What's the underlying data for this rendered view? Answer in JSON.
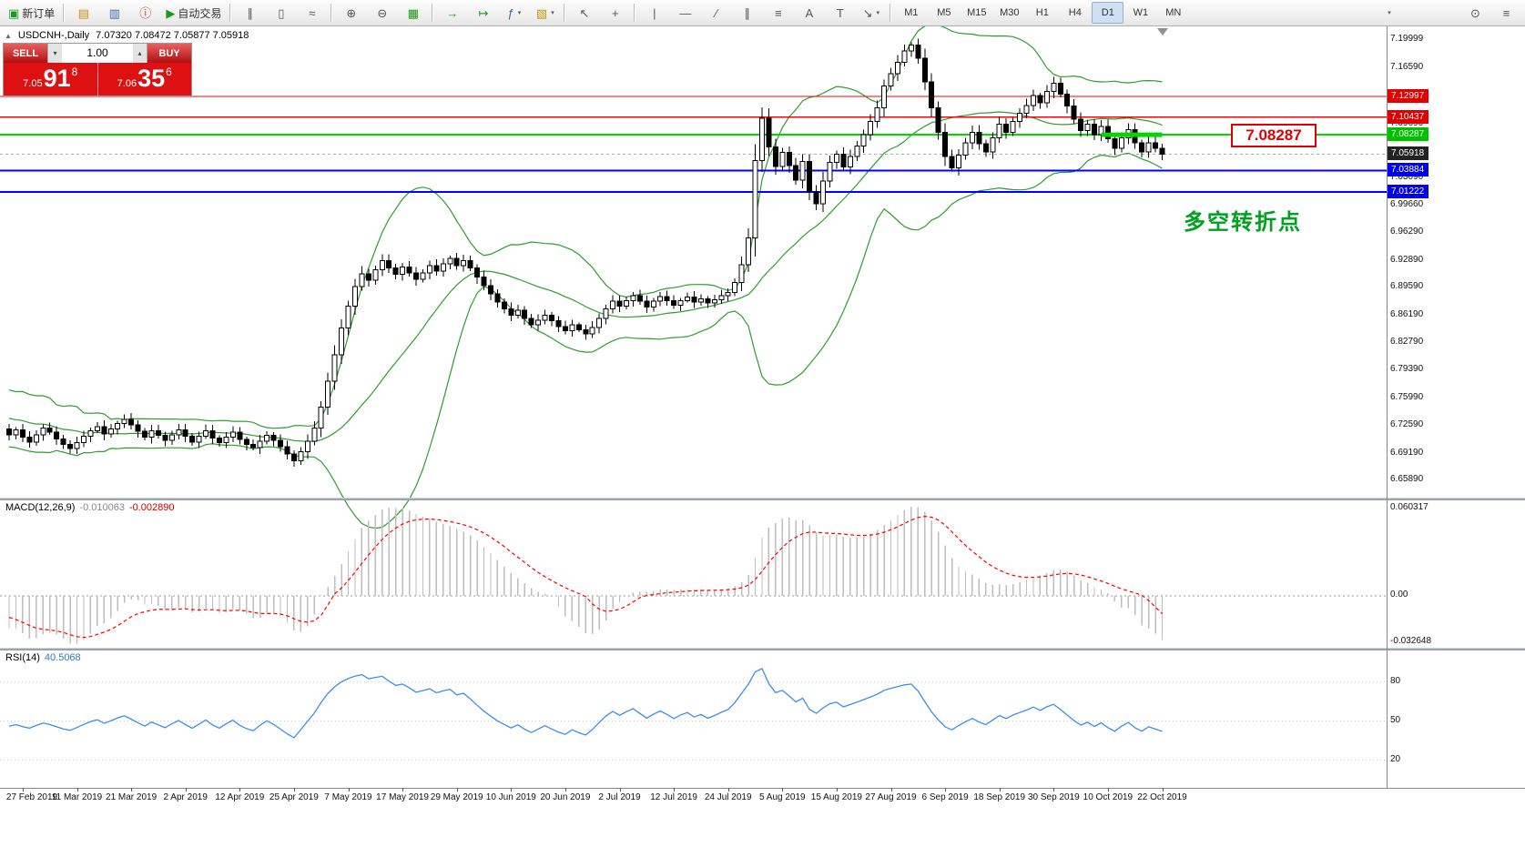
{
  "toolbar": {
    "new_order_label": "新订单",
    "auto_trading_label": "自动交易",
    "timeframes": [
      "M1",
      "M5",
      "M15",
      "M30",
      "H1",
      "H4",
      "D1",
      "W1",
      "MN"
    ],
    "active_timeframe": "D1",
    "icons": {
      "new_order": "▣",
      "charts": "▤",
      "profiles": "▥",
      "info": "ⓘ",
      "play": "▶",
      "bar_chart": "∥",
      "candles": "▯",
      "line_chart": "≈",
      "zoom_in": "⊕",
      "zoom_out": "⊖",
      "grid": "▦",
      "auto_scroll": "→",
      "chart_shift": "↦",
      "indicators": "ƒ",
      "templates": "▧",
      "dropdown": "▾",
      "cursor": "↖",
      "crosshair": "+",
      "vline": "|",
      "hline": "—",
      "trendline": "∕",
      "channel": "∥",
      "fibo": "≡",
      "text": "A",
      "label": "T",
      "arrows": "↘",
      "overflow": "▾",
      "search": "⊙",
      "layout": "≡",
      "collapse": "▲",
      "shift_marker": "▼"
    }
  },
  "chart": {
    "symbol_label": "USDCNH-,Daily",
    "ohlc": "7.07320 7.08472 7.05877 7.05918",
    "one_click": {
      "sell_label": "SELL",
      "buy_label": "BUY",
      "volume": "1.00",
      "down_glyph": "▾",
      "up_glyph": "▴",
      "sell_price_small": "7.05",
      "sell_price_big": "91",
      "sell_price_sup": "8",
      "buy_price_small": "7.06",
      "buy_price_big": "35",
      "buy_price_sup": "6"
    },
    "bid_price": 7.05918,
    "hlines": [
      {
        "price": 7.12997,
        "color": "#ff0000",
        "width": 1.4
      },
      {
        "price": 7.10437,
        "color": "#ff0000",
        "width": 1.4
      },
      {
        "price": 7.08287,
        "color": "#00d800",
        "width": 2
      },
      {
        "price": 7.03884,
        "color": "#0000ff",
        "width": 2
      },
      {
        "price": 7.01222,
        "color": "#0000ff",
        "width": 2
      }
    ],
    "highlight_segment": {
      "price": 7.08287,
      "bar_start": 161,
      "bar_end": 170,
      "color": "#00d800"
    },
    "annotation": {
      "price_text": "7.08287",
      "note_text": "多空转折点"
    },
    "price_axis": {
      "grid": [
        {
          "text": "7.19999",
          "price": 7.19999
        },
        {
          "text": "7.16590",
          "price": 7.1659
        },
        {
          "text": "7.09690",
          "price": 7.0969
        },
        {
          "text": "7.03090",
          "price": 7.0309
        },
        {
          "text": "6.99660",
          "price": 6.9966
        },
        {
          "text": "6.96290",
          "price": 6.9629
        },
        {
          "text": "6.92890",
          "price": 6.9289
        },
        {
          "text": "6.89590",
          "price": 6.8959
        },
        {
          "text": "6.86190",
          "price": 6.8619
        },
        {
          "text": "6.82790",
          "price": 6.8279
        },
        {
          "text": "6.79390",
          "price": 6.7939
        },
        {
          "text": "6.75990",
          "price": 6.7599
        },
        {
          "text": "6.72590",
          "price": 6.7259
        },
        {
          "text": "6.69190",
          "price": 6.6919
        },
        {
          "text": "6.65890",
          "price": 6.6589
        }
      ],
      "tags": [
        {
          "text": "7.12997",
          "price": 7.12997,
          "bg": "#e00000"
        },
        {
          "text": "7.10437",
          "price": 7.10437,
          "bg": "#e00000"
        },
        {
          "text": "7.08287",
          "price": 7.08287,
          "bg": "#00c000"
        },
        {
          "text": "7.05918",
          "price": 7.05918,
          "bg": "#222222"
        },
        {
          "text": "7.03884",
          "price": 7.03884,
          "bg": "#0000ee"
        },
        {
          "text": "7.01222",
          "price": 7.01222,
          "bg": "#0000ee"
        }
      ]
    }
  },
  "macd": {
    "label": "MACD(12,26,9)",
    "value1": "-0.010063",
    "value2": "-0.002890",
    "axis": [
      "0.060317",
      "0.00",
      "-0.032648"
    ],
    "fast": 12,
    "slow": 26,
    "signal_period": 9
  },
  "rsi": {
    "label": "RSI(14)",
    "value": "40.5068",
    "levels": [
      "80",
      "50",
      "20"
    ],
    "period": 14
  },
  "dates": [
    "27 Feb 2019",
    "11 Mar 2019",
    "21 Mar 2019",
    "2 Apr 2019",
    "12 Apr 2019",
    "25 Apr 2019",
    "7 May 2019",
    "17 May 2019",
    "29 May 2019",
    "10 Jun 2019",
    "20 Jun 2019",
    "2 Jul 2019",
    "12 Jul 2019",
    "24 Jul 2019",
    "5 Aug 2019",
    "15 Aug 2019",
    "27 Aug 2019",
    "6 Sep 2019",
    "18 Sep 2019",
    "30 Sep 2019",
    "10 Oct 2019",
    "22 Oct 2019"
  ],
  "colors": {
    "bands": "#2e9e2e",
    "bull": "#ffffff",
    "bear": "#000000",
    "wick": "#000000",
    "macd_hist": "#bebebe",
    "macd_signal": "#ff0000",
    "rsi": "#3b8eea",
    "line_red": "#ff0000",
    "line_green": "#00d800",
    "line_blue": "#0000ff",
    "tag_bid_bg": "#222222",
    "annotation_red": "#e00000",
    "annotation_green": "#00a020"
  },
  "chart_data": {
    "type": "candlestick",
    "symbol": "USDCNH",
    "timeframe": "Daily",
    "ylim": [
      6.65,
      7.215
    ],
    "indicators": [
      "Bollinger Bands(20,2)",
      "MACD(12,26,9)",
      "RSI(14)"
    ],
    "x_axis_labels": [
      "27 Feb 2019",
      "11 Mar 2019",
      "21 Mar 2019",
      "2 Apr 2019",
      "12 Apr 2019",
      "25 Apr 2019",
      "7 May 2019",
      "17 May 2019",
      "29 May 2019",
      "10 Jun 2019",
      "20 Jun 2019",
      "2 Jul 2019",
      "12 Jul 2019",
      "24 Jul 2019",
      "5 Aug 2019",
      "15 Aug 2019",
      "27 Aug 2019",
      "6 Sep 2019",
      "18 Sep 2019",
      "30 Sep 2019",
      "10 Oct 2019",
      "22 Oct 2019"
    ],
    "closes_warmup": [
      6.742,
      6.751,
      6.733,
      6.76,
      6.744,
      6.722,
      6.748,
      6.768,
      6.741,
      6.713,
      6.731,
      6.757,
      6.724,
      6.703,
      6.728,
      6.749,
      6.722,
      6.738,
      6.713,
      6.721
    ],
    "closes": [
      6.714,
      6.72,
      6.711,
      6.705,
      6.714,
      6.722,
      6.717,
      6.709,
      6.702,
      6.697,
      6.704,
      6.712,
      6.719,
      6.724,
      6.715,
      6.721,
      6.728,
      6.733,
      6.726,
      6.718,
      6.711,
      6.719,
      6.713,
      6.707,
      6.714,
      6.72,
      6.712,
      6.705,
      6.712,
      6.719,
      6.71,
      6.704,
      6.711,
      6.717,
      6.708,
      6.702,
      6.698,
      6.706,
      6.713,
      6.707,
      6.699,
      6.69,
      6.682,
      6.693,
      6.706,
      6.722,
      6.748,
      6.78,
      6.812,
      6.845,
      6.872,
      6.896,
      6.912,
      6.904,
      6.917,
      6.928,
      6.919,
      6.911,
      6.92,
      6.913,
      6.905,
      6.913,
      6.922,
      6.915,
      6.924,
      6.931,
      6.922,
      6.928,
      6.919,
      6.908,
      6.897,
      6.887,
      6.877,
      6.869,
      6.861,
      6.867,
      6.857,
      6.849,
      6.855,
      6.861,
      6.854,
      6.847,
      6.842,
      6.849,
      6.843,
      6.838,
      6.846,
      6.857,
      6.869,
      6.878,
      6.872,
      6.879,
      6.885,
      6.878,
      6.871,
      6.878,
      6.884,
      6.879,
      6.873,
      6.879,
      6.883,
      6.877,
      6.881,
      6.876,
      6.88,
      6.885,
      6.889,
      6.901,
      6.923,
      6.956,
      7.051,
      7.103,
      7.068,
      7.044,
      7.061,
      7.045,
      7.027,
      7.05,
      7.013,
      6.998,
      7.026,
      7.049,
      7.059,
      7.043,
      7.056,
      7.069,
      7.083,
      7.099,
      7.116,
      7.143,
      7.158,
      7.172,
      7.186,
      7.193,
      7.177,
      7.148,
      7.116,
      7.086,
      7.056,
      7.042,
      7.058,
      7.073,
      7.086,
      7.072,
      7.062,
      7.079,
      7.096,
      7.086,
      7.099,
      7.109,
      7.119,
      7.131,
      7.122,
      7.136,
      7.146,
      7.133,
      7.118,
      7.102,
      7.088,
      7.096,
      7.083,
      7.093,
      7.078,
      7.066,
      7.079,
      7.089,
      7.073,
      7.062,
      7.073,
      7.066,
      7.059
    ]
  }
}
